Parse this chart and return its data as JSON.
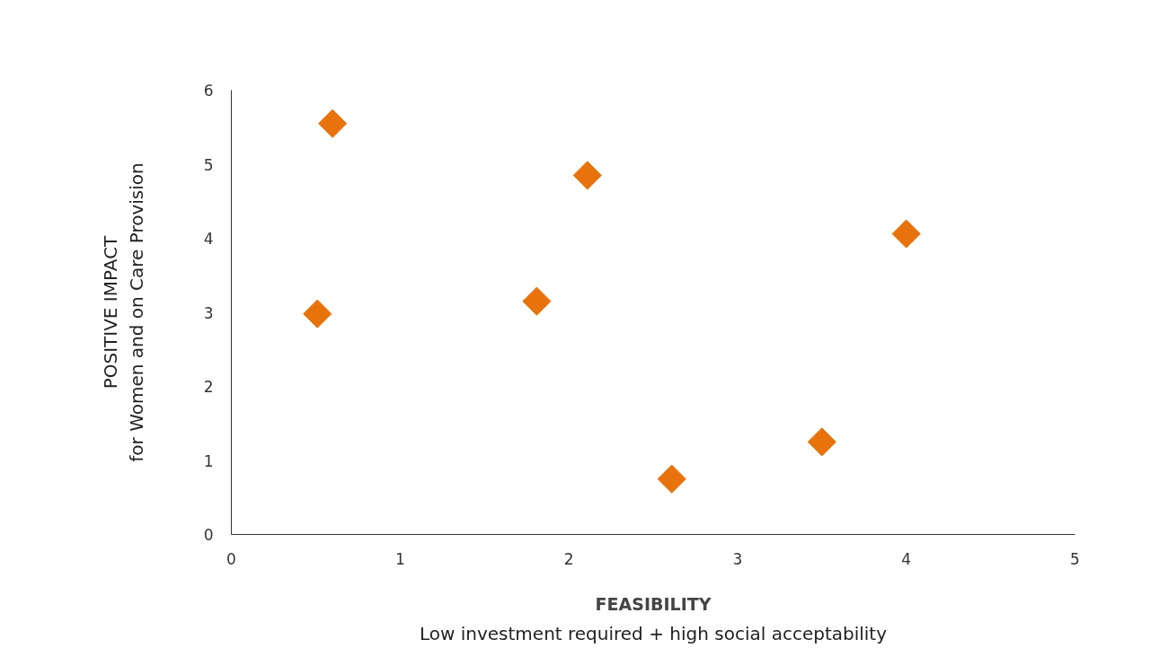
{
  "chart_data": {
    "type": "scatter",
    "xlabel": "FEASIBILITY\nLow investment required + high social acceptability",
    "ylabel": "POSITIVE IMPACT\nfor Women and on Care Provision",
    "x": [
      0.6,
      2.11,
      4.0,
      0.51,
      1.81,
      2.61,
      3.5
    ],
    "series": [
      {
        "color": "#e8730c",
        "values": [
          5.55,
          4.85,
          4.06,
          2.98,
          3.15,
          0.75,
          1.25
        ]
      }
    ],
    "marker": "diamond",
    "xlim": [
      0,
      5
    ],
    "ylim": [
      0,
      6
    ],
    "xticks": [
      0,
      1,
      2,
      3,
      4,
      5
    ],
    "yticks": [
      0,
      1,
      2,
      3,
      4,
      5,
      6
    ]
  }
}
